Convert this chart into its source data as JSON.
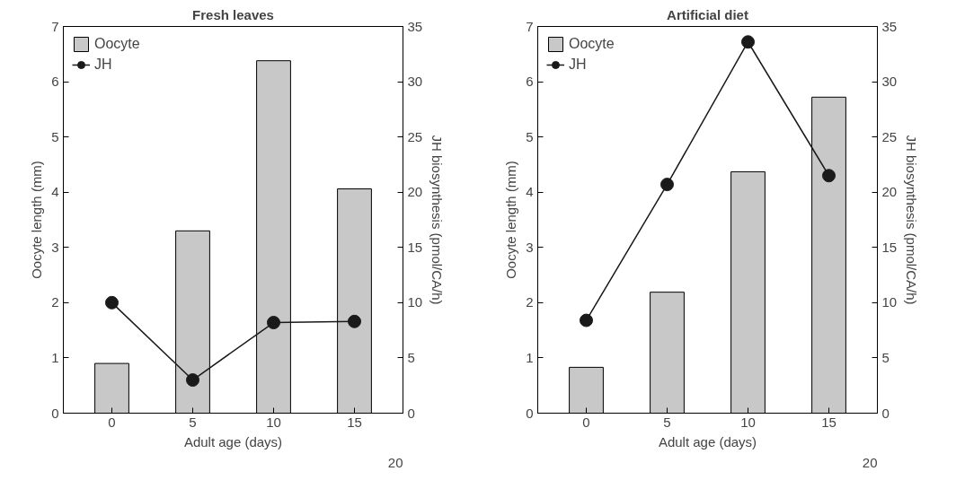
{
  "chart_data": [
    {
      "type": "bar",
      "title": "Fresh leaves",
      "xlabel": "Adult age (days)",
      "ylabel": "Oocyte length (mm)",
      "y2label": "JH biosynthesis (pmol/CA/h)",
      "categories": [
        "0",
        "5",
        "10",
        "15"
      ],
      "series": [
        {
          "name": "Oocyte",
          "color": "#c8c8c8",
          "values": [
            0.9,
            3.3,
            6.38,
            4.06
          ]
        },
        {
          "name": "JH",
          "type": "line",
          "axis": "y2",
          "color": "#1a1a1a",
          "marker": "circle",
          "values": [
            10.0,
            3.0,
            8.2,
            8.3
          ]
        }
      ],
      "ylim": [
        0,
        7
      ],
      "yticks": [
        0,
        1,
        2,
        3,
        4,
        5,
        6,
        7
      ],
      "y2lim": [
        0,
        35
      ],
      "y2ticks": [
        0,
        5,
        10,
        15,
        20,
        25,
        30,
        35
      ],
      "annotations": [
        "20"
      ],
      "legend": "top left",
      "grid": false
    },
    {
      "type": "bar",
      "title": "Artificial diet",
      "xlabel": "Adult age (days)",
      "ylabel": "Oocyte length (mm)",
      "y2label": "JH biosynthesis (pmol/CA/h)",
      "categories": [
        "0",
        "5",
        "10",
        "15"
      ],
      "series": [
        {
          "name": "Oocyte",
          "color": "#c8c8c8",
          "values": [
            0.83,
            2.19,
            4.37,
            5.72
          ]
        },
        {
          "name": "JH",
          "type": "line",
          "axis": "y2",
          "color": "#1a1a1a",
          "marker": "circle",
          "values": [
            8.4,
            20.7,
            33.6,
            21.5
          ]
        }
      ],
      "ylim": [
        0,
        7
      ],
      "yticks": [
        0,
        1,
        2,
        3,
        4,
        5,
        6,
        7
      ],
      "y2lim": [
        0,
        35
      ],
      "y2ticks": [
        0,
        5,
        10,
        15,
        20,
        25,
        30,
        35
      ],
      "annotations": [
        "20"
      ],
      "legend": "top left",
      "grid": false
    }
  ]
}
